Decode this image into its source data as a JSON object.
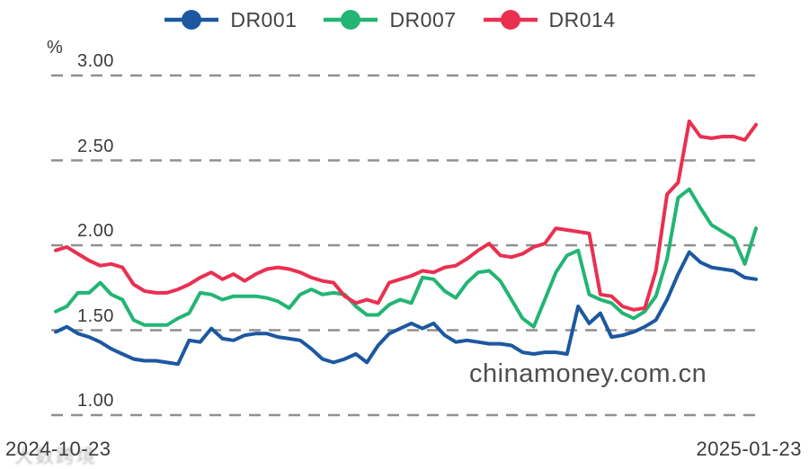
{
  "chart_data": {
    "type": "line",
    "title": "",
    "xlabel": "",
    "ylabel": "",
    "unit": "%",
    "grid": "horizontal-dashed",
    "legend_position": "top",
    "x_axis": {
      "start_label": "2024-10-23",
      "end_label": "2025-01-23"
    },
    "y_axis": {
      "min": 1.0,
      "max": 3.0,
      "unit": "%",
      "tick_labels": [
        "3.00",
        "2.50",
        "2.00",
        "1.50",
        "1.00"
      ]
    },
    "series": [
      {
        "name": "DR001",
        "color": "#1c58a0",
        "values": [
          1.49,
          1.52,
          1.48,
          1.46,
          1.43,
          1.39,
          1.36,
          1.33,
          1.32,
          1.32,
          1.31,
          1.3,
          1.44,
          1.43,
          1.51,
          1.45,
          1.44,
          1.47,
          1.48,
          1.48,
          1.46,
          1.45,
          1.44,
          1.39,
          1.33,
          1.31,
          1.33,
          1.36,
          1.31,
          1.41,
          1.48,
          1.51,
          1.54,
          1.51,
          1.54,
          1.47,
          1.43,
          1.44,
          1.43,
          1.42,
          1.42,
          1.41,
          1.37,
          1.36,
          1.37,
          1.37,
          1.36,
          1.64,
          1.54,
          1.6,
          1.46,
          1.47,
          1.49,
          1.52,
          1.56,
          1.68,
          1.83,
          1.96,
          1.9,
          1.87,
          1.86,
          1.85,
          1.81,
          1.8
        ]
      },
      {
        "name": "DR007",
        "color": "#22b573",
        "values": [
          1.61,
          1.64,
          1.72,
          1.72,
          1.78,
          1.71,
          1.68,
          1.56,
          1.53,
          1.53,
          1.53,
          1.57,
          1.6,
          1.72,
          1.71,
          1.68,
          1.7,
          1.7,
          1.7,
          1.69,
          1.67,
          1.63,
          1.71,
          1.74,
          1.71,
          1.72,
          1.71,
          1.64,
          1.59,
          1.59,
          1.65,
          1.68,
          1.66,
          1.81,
          1.8,
          1.73,
          1.69,
          1.78,
          1.84,
          1.85,
          1.79,
          1.68,
          1.57,
          1.52,
          1.68,
          1.84,
          1.94,
          1.97,
          1.71,
          1.68,
          1.66,
          1.6,
          1.57,
          1.61,
          1.7,
          1.92,
          2.28,
          2.33,
          2.22,
          2.12,
          2.08,
          2.04,
          1.89,
          2.1
        ]
      },
      {
        "name": "DR014",
        "color": "#e93050",
        "values": [
          1.97,
          1.99,
          1.95,
          1.91,
          1.88,
          1.89,
          1.87,
          1.77,
          1.73,
          1.72,
          1.72,
          1.74,
          1.77,
          1.81,
          1.84,
          1.8,
          1.83,
          1.79,
          1.83,
          1.86,
          1.87,
          1.86,
          1.84,
          1.81,
          1.79,
          1.78,
          1.7,
          1.66,
          1.68,
          1.66,
          1.78,
          1.8,
          1.82,
          1.85,
          1.84,
          1.87,
          1.88,
          1.92,
          1.97,
          2.01,
          1.94,
          1.93,
          1.95,
          1.99,
          2.01,
          2.1,
          2.09,
          2.08,
          2.07,
          1.71,
          1.7,
          1.64,
          1.62,
          1.63,
          1.85,
          2.3,
          2.37,
          2.73,
          2.64,
          2.63,
          2.64,
          2.64,
          2.62,
          2.71
        ]
      }
    ]
  },
  "watermark": {
    "site_text": "chinamoney.com.cn",
    "faint_overlay_text": "大数跨境"
  },
  "colors": {
    "grid": "#8f8f8f",
    "axis_text": "#3a3a3a",
    "legend_text": "#434343",
    "watermark_text": "#4e4e4e"
  }
}
